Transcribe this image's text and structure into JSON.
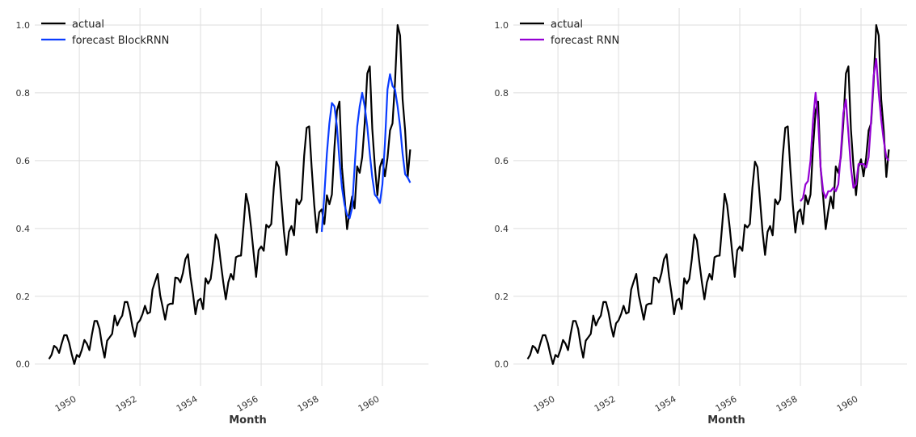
{
  "chart_data": [
    {
      "type": "line",
      "xlabel": "Month",
      "ylabel": "",
      "xlim": [
        1948.53,
        1961.52
      ],
      "ylim": [
        -0.065,
        1.05
      ],
      "xticks": [
        "1950",
        "1952",
        "1954",
        "1956",
        "1958",
        "1960"
      ],
      "yticks": [
        "0.0",
        "0.2",
        "0.4",
        "0.6",
        "0.8",
        "1.0"
      ],
      "grid": true,
      "legend": "top-left",
      "series": [
        {
          "name": "actual",
          "color": "#000000",
          "start": "1949-01",
          "values": [
            0.015,
            0.027,
            0.054,
            0.048,
            0.033,
            0.06,
            0.085,
            0.085,
            0.062,
            0.029,
            0.0,
            0.027,
            0.021,
            0.042,
            0.071,
            0.06,
            0.041,
            0.087,
            0.127,
            0.127,
            0.104,
            0.056,
            0.019,
            0.069,
            0.079,
            0.089,
            0.143,
            0.114,
            0.131,
            0.143,
            0.183,
            0.183,
            0.154,
            0.112,
            0.081,
            0.12,
            0.129,
            0.147,
            0.172,
            0.149,
            0.153,
            0.22,
            0.243,
            0.266,
            0.203,
            0.168,
            0.131,
            0.174,
            0.178,
            0.178,
            0.255,
            0.253,
            0.241,
            0.268,
            0.309,
            0.324,
            0.257,
            0.207,
            0.147,
            0.187,
            0.193,
            0.162,
            0.253,
            0.237,
            0.251,
            0.309,
            0.382,
            0.365,
            0.299,
            0.241,
            0.191,
            0.241,
            0.266,
            0.249,
            0.315,
            0.319,
            0.32,
            0.407,
            0.502,
            0.469,
            0.402,
            0.328,
            0.257,
            0.336,
            0.347,
            0.334,
            0.411,
            0.403,
            0.413,
            0.521,
            0.597,
            0.581,
            0.485,
            0.39,
            0.322,
            0.39,
            0.407,
            0.38,
            0.486,
            0.471,
            0.485,
            0.614,
            0.697,
            0.701,
            0.579,
            0.469,
            0.388,
            0.448,
            0.456,
            0.413,
            0.498,
            0.471,
            0.5,
            0.639,
            0.747,
            0.774,
            0.579,
            0.492,
            0.398,
            0.45,
            0.494,
            0.459,
            0.583,
            0.564,
            0.61,
            0.71,
            0.857,
            0.878,
            0.693,
            0.585,
            0.498,
            0.581,
            0.604,
            0.554,
            0.608,
            0.689,
            0.71,
            0.832,
            1.0,
            0.969,
            0.78,
            0.689,
            0.552,
            0.633
          ]
        },
        {
          "name": "forecast BlockRNN",
          "color": "#0a3cff",
          "start": "1958-01",
          "values": [
            0.39,
            0.5,
            0.62,
            0.71,
            0.77,
            0.76,
            0.7,
            0.6,
            0.52,
            0.47,
            0.44,
            0.43,
            0.46,
            0.58,
            0.7,
            0.76,
            0.8,
            0.76,
            0.7,
            0.62,
            0.55,
            0.5,
            0.49,
            0.475,
            0.53,
            0.65,
            0.81,
            0.855,
            0.82,
            0.81,
            0.76,
            0.7,
            0.62,
            0.56,
            0.55,
            0.535
          ]
        }
      ]
    },
    {
      "type": "line",
      "xlabel": "Month",
      "ylabel": "",
      "xlim": [
        1948.53,
        1961.52
      ],
      "ylim": [
        -0.065,
        1.05
      ],
      "xticks": [
        "1950",
        "1952",
        "1954",
        "1956",
        "1958",
        "1960"
      ],
      "yticks": [
        "0.0",
        "0.2",
        "0.4",
        "0.6",
        "0.8",
        "1.0"
      ],
      "grid": true,
      "legend": "top-left",
      "series": [
        {
          "name": "actual",
          "color": "#000000",
          "start": "1949-01",
          "same_as": "actual"
        },
        {
          "name": "forecast RNN",
          "color": "#9400d3",
          "start": "1958-01",
          "values": [
            0.48,
            0.49,
            0.53,
            0.54,
            0.6,
            0.72,
            0.8,
            0.72,
            0.58,
            0.51,
            0.49,
            0.51,
            0.51,
            0.52,
            0.51,
            0.53,
            0.62,
            0.74,
            0.78,
            0.68,
            0.58,
            0.52,
            0.53,
            0.59,
            0.59,
            0.59,
            0.58,
            0.61,
            0.72,
            0.85,
            0.9,
            0.8,
            0.72,
            0.66,
            0.61,
            0.6
          ]
        }
      ]
    }
  ]
}
